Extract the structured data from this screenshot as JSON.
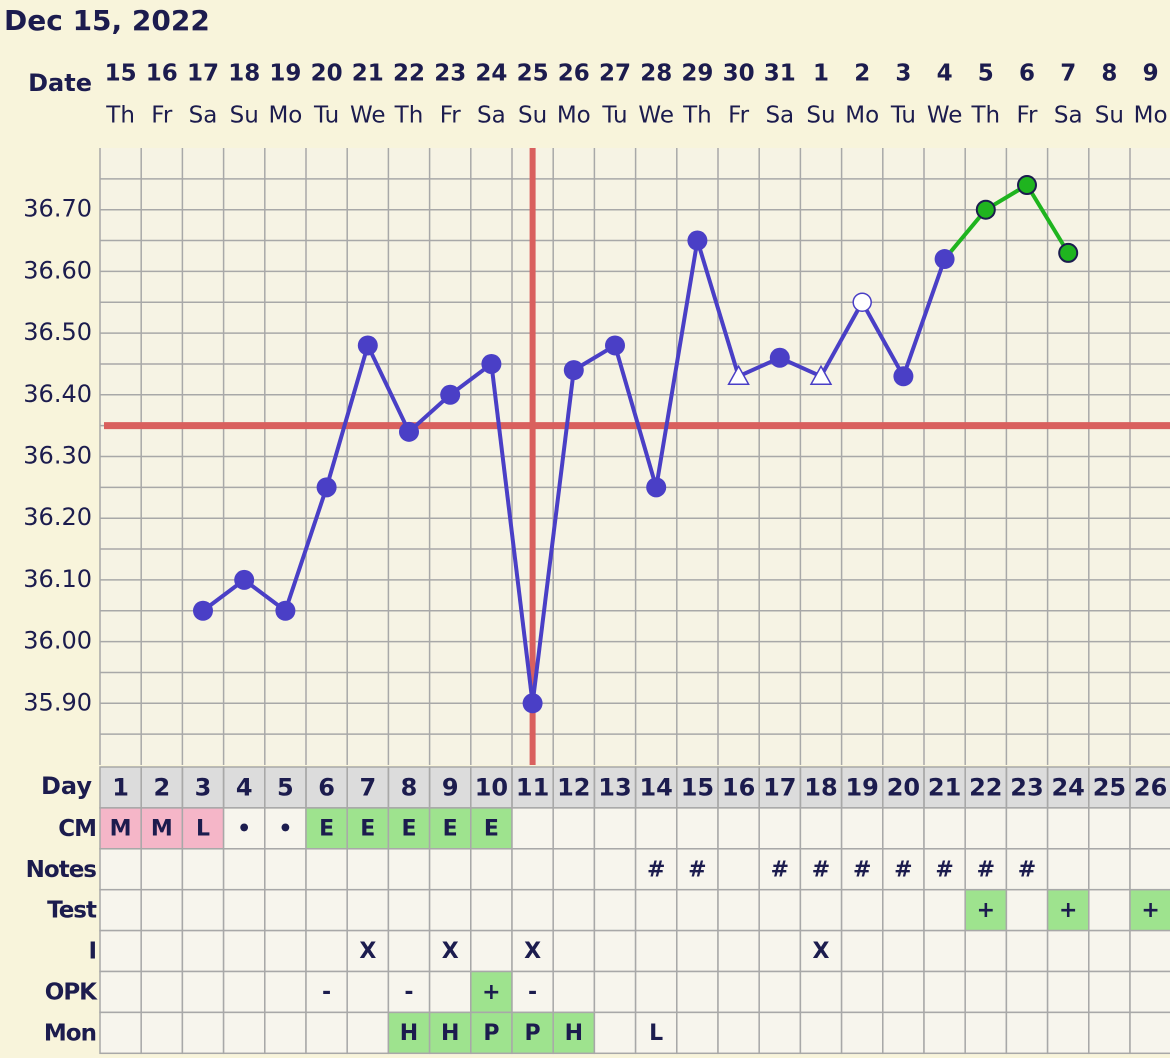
{
  "header": {
    "title": "Dec 15, 2022"
  },
  "chart_data": {
    "type": "line",
    "date_label": "Date",
    "categories": [
      "15",
      "16",
      "17",
      "18",
      "19",
      "20",
      "21",
      "22",
      "23",
      "24",
      "25",
      "26",
      "27",
      "28",
      "29",
      "30",
      "31",
      "1",
      "2",
      "3",
      "4",
      "5",
      "6",
      "7",
      "8",
      "9"
    ],
    "weekdays": [
      "Th",
      "Fr",
      "Sa",
      "Su",
      "Mo",
      "Tu",
      "We",
      "Th",
      "Fr",
      "Sa",
      "Su",
      "Mo",
      "Tu",
      "We",
      "Th",
      "Fr",
      "Sa",
      "Su",
      "Mo",
      "Tu",
      "We",
      "Th",
      "Fr",
      "Sa",
      "Su",
      "Mo"
    ],
    "series": [
      {
        "color": "#4a3fc6",
        "highlight_color": "#1fb41f",
        "values": [
          null,
          null,
          36.05,
          36.1,
          36.05,
          36.25,
          36.48,
          36.34,
          36.4,
          36.45,
          35.9,
          36.44,
          36.48,
          36.25,
          36.65,
          36.43,
          36.46,
          36.43,
          36.55,
          36.43,
          36.62,
          36.7,
          36.74,
          36.63,
          null,
          null
        ],
        "markers": [
          null,
          null,
          "dot",
          "dot",
          "dot",
          "dot",
          "dot",
          "dot",
          "dot",
          "dot",
          "dot",
          "dot",
          "dot",
          "dot",
          "dot",
          "triangle",
          "dot",
          "triangle",
          "open",
          "dot",
          "dot",
          "highlight",
          "highlight",
          "highlight",
          null,
          null
        ]
      }
    ],
    "ylim": [
      35.8,
      36.8
    ],
    "yticks": [
      {
        "value": 35.9,
        "label": "35.90"
      },
      {
        "value": 36.0,
        "label": "36.00"
      },
      {
        "value": 36.1,
        "label": "36.10"
      },
      {
        "value": 36.2,
        "label": "36.20"
      },
      {
        "value": 36.3,
        "label": "36.30"
      },
      {
        "value": 36.4,
        "label": "36.40"
      },
      {
        "value": 36.5,
        "label": "36.50"
      },
      {
        "value": 36.6,
        "label": "36.60"
      },
      {
        "value": 36.7,
        "label": "36.70"
      }
    ],
    "minor_yticks": [
      35.85,
      35.95,
      36.05,
      36.15,
      36.25,
      36.35,
      36.45,
      36.55,
      36.65,
      36.75
    ],
    "grid": true,
    "coverline": 36.35,
    "coverline_color": "#d9605e",
    "ovulation_day": 11,
    "day_label": "Day",
    "days": [
      1,
      2,
      3,
      4,
      5,
      6,
      7,
      8,
      9,
      10,
      11,
      12,
      13,
      14,
      15,
      16,
      17,
      18,
      19,
      20,
      21,
      22,
      23,
      24,
      25,
      26
    ]
  },
  "table": {
    "rows": [
      {
        "label": "CM",
        "cells": [
          "M",
          "M",
          "L",
          "•",
          "•",
          "E",
          "E",
          "E",
          "E",
          "E",
          null,
          null,
          null,
          null,
          null,
          null,
          null,
          null,
          null,
          null,
          null,
          null,
          null,
          null,
          null,
          null
        ],
        "fills": [
          "#f5b6c8",
          "#f5b6c8",
          "#f5b6c8",
          null,
          null,
          "#9ee38e",
          "#9ee38e",
          "#9ee38e",
          "#9ee38e",
          "#9ee38e",
          null,
          null,
          null,
          null,
          null,
          null,
          null,
          null,
          null,
          null,
          null,
          null,
          null,
          null,
          null,
          null
        ]
      },
      {
        "label": "Notes",
        "cells": [
          null,
          null,
          null,
          null,
          null,
          null,
          null,
          null,
          null,
          null,
          null,
          null,
          null,
          "#",
          "#",
          null,
          "#",
          "#",
          "#",
          "#",
          "#",
          "#",
          "#",
          null,
          null,
          null
        ],
        "fills": [
          null,
          null,
          null,
          null,
          null,
          null,
          null,
          null,
          null,
          null,
          null,
          null,
          null,
          null,
          null,
          null,
          null,
          null,
          null,
          null,
          null,
          null,
          null,
          null,
          null,
          null
        ]
      },
      {
        "label": "Test",
        "cells": [
          null,
          null,
          null,
          null,
          null,
          null,
          null,
          null,
          null,
          null,
          null,
          null,
          null,
          null,
          null,
          null,
          null,
          null,
          null,
          null,
          null,
          "+",
          null,
          "+",
          null,
          "+"
        ],
        "fills": [
          null,
          null,
          null,
          null,
          null,
          null,
          null,
          null,
          null,
          null,
          null,
          null,
          null,
          null,
          null,
          null,
          null,
          null,
          null,
          null,
          null,
          "#9ee38e",
          null,
          "#9ee38e",
          null,
          "#9ee38e"
        ]
      },
      {
        "label": "I",
        "cells": [
          null,
          null,
          null,
          null,
          null,
          null,
          "X",
          null,
          "X",
          null,
          "X",
          null,
          null,
          null,
          null,
          null,
          null,
          "X",
          null,
          null,
          null,
          null,
          null,
          null,
          null,
          null
        ],
        "fills": [
          null,
          null,
          null,
          null,
          null,
          null,
          null,
          null,
          null,
          null,
          null,
          null,
          null,
          null,
          null,
          null,
          null,
          null,
          null,
          null,
          null,
          null,
          null,
          null,
          null,
          null
        ]
      },
      {
        "label": "OPK",
        "cells": [
          null,
          null,
          null,
          null,
          null,
          "-",
          null,
          "-",
          null,
          "+",
          "-",
          null,
          null,
          null,
          null,
          null,
          null,
          null,
          null,
          null,
          null,
          null,
          null,
          null,
          null,
          null
        ],
        "fills": [
          null,
          null,
          null,
          null,
          null,
          null,
          null,
          null,
          null,
          "#9ee38e",
          null,
          null,
          null,
          null,
          null,
          null,
          null,
          null,
          null,
          null,
          null,
          null,
          null,
          null,
          null,
          null
        ]
      },
      {
        "label": "Mon",
        "cells": [
          null,
          null,
          null,
          null,
          null,
          null,
          null,
          "H",
          "H",
          "P",
          "P",
          "H",
          null,
          "L",
          null,
          null,
          null,
          null,
          null,
          null,
          null,
          null,
          null,
          null,
          null,
          null
        ],
        "fills": [
          null,
          null,
          null,
          null,
          null,
          null,
          null,
          "#9ee38e",
          "#9ee38e",
          "#9ee38e",
          "#9ee38e",
          "#9ee38e",
          null,
          null,
          null,
          null,
          null,
          null,
          null,
          null,
          null,
          null,
          null,
          null,
          null,
          null
        ]
      }
    ]
  }
}
